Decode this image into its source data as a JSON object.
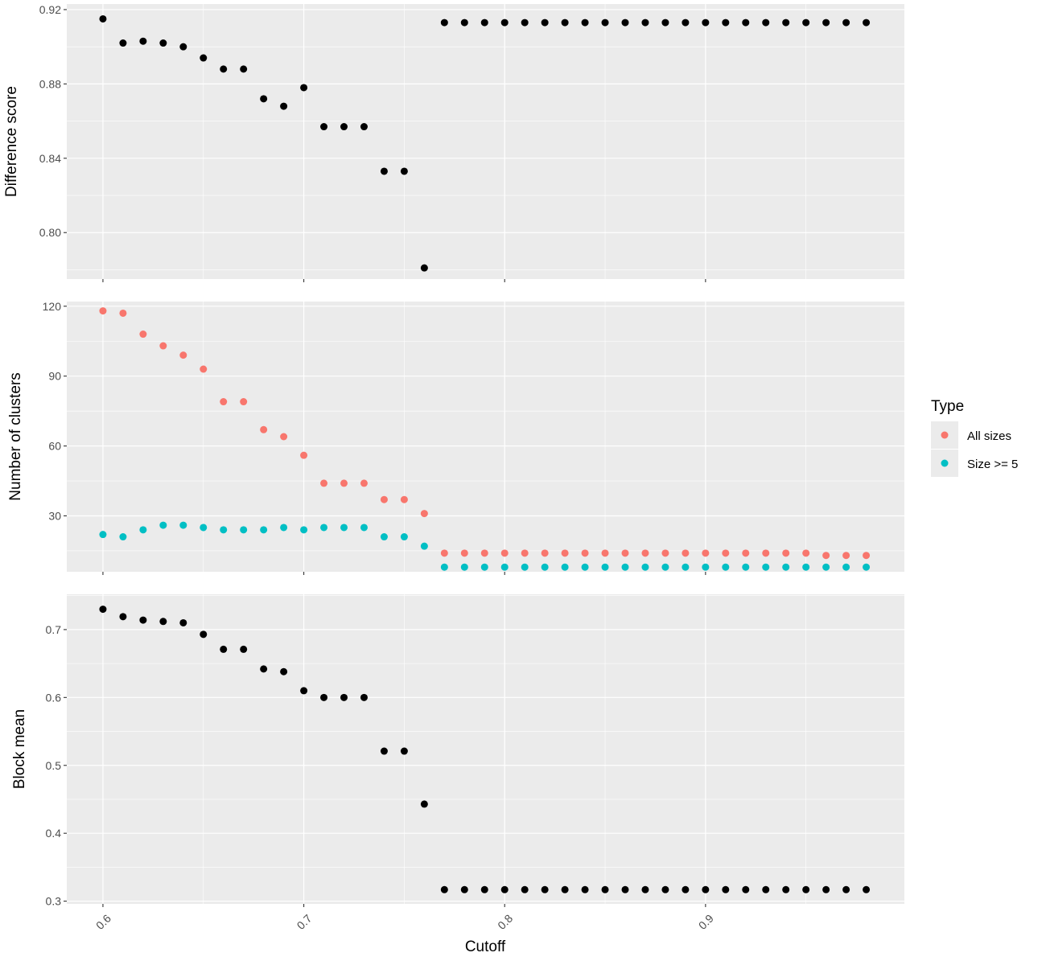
{
  "chart_data": [
    {
      "type": "scatter",
      "ylabel": "Difference score",
      "ylim": [
        0.775,
        0.923
      ],
      "yticks": [
        "0.80",
        "0.84",
        "0.88",
        "0.92"
      ],
      "ytick_values": [
        0.8,
        0.84,
        0.88,
        0.92
      ],
      "series": [
        {
          "color": "#000000",
          "x": [
            0.6,
            0.61,
            0.62,
            0.63,
            0.64,
            0.65,
            0.66,
            0.67,
            0.68,
            0.69,
            0.7,
            0.71,
            0.72,
            0.73,
            0.74,
            0.75,
            0.76,
            0.77,
            0.78,
            0.79,
            0.8,
            0.81,
            0.82,
            0.83,
            0.84,
            0.85,
            0.86,
            0.87,
            0.88,
            0.89,
            0.9,
            0.91,
            0.92,
            0.93,
            0.94,
            0.95,
            0.96,
            0.97,
            0.98
          ],
          "y": [
            0.915,
            0.902,
            0.903,
            0.902,
            0.9,
            0.894,
            0.888,
            0.888,
            0.872,
            0.868,
            0.878,
            0.857,
            0.857,
            0.857,
            0.833,
            0.833,
            0.781,
            0.913,
            0.913,
            0.913,
            0.913,
            0.913,
            0.913,
            0.913,
            0.913,
            0.913,
            0.913,
            0.913,
            0.913,
            0.913,
            0.913,
            0.913,
            0.913,
            0.913,
            0.913,
            0.913,
            0.913,
            0.913,
            0.913
          ]
        }
      ]
    },
    {
      "type": "scatter",
      "ylabel": "Number of clusters",
      "ylim": [
        6,
        122
      ],
      "yticks": [
        "30",
        "60",
        "90",
        "120"
      ],
      "ytick_values": [
        30,
        60,
        90,
        120
      ],
      "series": [
        {
          "name": "All sizes",
          "color": "#F8766D",
          "x": [
            0.6,
            0.61,
            0.62,
            0.63,
            0.64,
            0.65,
            0.66,
            0.67,
            0.68,
            0.69,
            0.7,
            0.71,
            0.72,
            0.73,
            0.74,
            0.75,
            0.76,
            0.77,
            0.78,
            0.79,
            0.8,
            0.81,
            0.82,
            0.83,
            0.84,
            0.85,
            0.86,
            0.87,
            0.88,
            0.89,
            0.9,
            0.91,
            0.92,
            0.93,
            0.94,
            0.95,
            0.96,
            0.97,
            0.98
          ],
          "y": [
            118,
            117,
            108,
            103,
            99,
            93,
            79,
            79,
            67,
            64,
            56,
            44,
            44,
            44,
            37,
            37,
            31,
            14,
            14,
            14,
            14,
            14,
            14,
            14,
            14,
            14,
            14,
            14,
            14,
            14,
            14,
            14,
            14,
            14,
            14,
            14,
            13,
            13,
            13
          ]
        },
        {
          "name": "Size >= 5",
          "color": "#00BFC4",
          "x": [
            0.6,
            0.61,
            0.62,
            0.63,
            0.64,
            0.65,
            0.66,
            0.67,
            0.68,
            0.69,
            0.7,
            0.71,
            0.72,
            0.73,
            0.74,
            0.75,
            0.76,
            0.77,
            0.78,
            0.79,
            0.8,
            0.81,
            0.82,
            0.83,
            0.84,
            0.85,
            0.86,
            0.87,
            0.88,
            0.89,
            0.9,
            0.91,
            0.92,
            0.93,
            0.94,
            0.95,
            0.96,
            0.97,
            0.98
          ],
          "y": [
            22,
            21,
            24,
            26,
            26,
            25,
            24,
            24,
            24,
            25,
            24,
            25,
            25,
            25,
            21,
            21,
            17,
            8,
            8,
            8,
            8,
            8,
            8,
            8,
            8,
            8,
            8,
            8,
            8,
            8,
            8,
            8,
            8,
            8,
            8,
            8,
            8,
            8,
            8
          ]
        }
      ]
    },
    {
      "type": "scatter",
      "ylabel": "Block mean",
      "ylim": [
        0.296,
        0.752
      ],
      "yticks": [
        "0.3",
        "0.4",
        "0.5",
        "0.6",
        "0.7"
      ],
      "ytick_values": [
        0.3,
        0.4,
        0.5,
        0.6,
        0.7
      ],
      "series": [
        {
          "color": "#000000",
          "x": [
            0.6,
            0.61,
            0.62,
            0.63,
            0.64,
            0.65,
            0.66,
            0.67,
            0.68,
            0.69,
            0.7,
            0.71,
            0.72,
            0.73,
            0.74,
            0.75,
            0.76,
            0.77,
            0.78,
            0.79,
            0.8,
            0.81,
            0.82,
            0.83,
            0.84,
            0.85,
            0.86,
            0.87,
            0.88,
            0.89,
            0.9,
            0.91,
            0.92,
            0.93,
            0.94,
            0.95,
            0.96,
            0.97,
            0.98
          ],
          "y": [
            0.73,
            0.719,
            0.714,
            0.712,
            0.71,
            0.693,
            0.671,
            0.671,
            0.642,
            0.638,
            0.61,
            0.6,
            0.6,
            0.6,
            0.521,
            0.521,
            0.443,
            0.317,
            0.317,
            0.317,
            0.317,
            0.317,
            0.317,
            0.317,
            0.317,
            0.317,
            0.317,
            0.317,
            0.317,
            0.317,
            0.317,
            0.317,
            0.317,
            0.317,
            0.317,
            0.317,
            0.317,
            0.317,
            0.317
          ]
        }
      ]
    }
  ],
  "x_axis": {
    "label": "Cutoff",
    "xlim": [
      0.582,
      0.999
    ],
    "ticks": [
      "0.6",
      "0.7",
      "0.8",
      "0.9"
    ],
    "tick_values": [
      0.6,
      0.7,
      0.8,
      0.9
    ]
  },
  "legend": {
    "title": "Type",
    "placement": "right",
    "items": [
      {
        "label": "All sizes",
        "color": "#F8766D"
      },
      {
        "label": "Size >= 5",
        "color": "#00BFC4"
      }
    ]
  },
  "colors": {
    "panel_background": "#EBEBEB",
    "grid": "#FFFFFF",
    "tick": "#333333"
  }
}
